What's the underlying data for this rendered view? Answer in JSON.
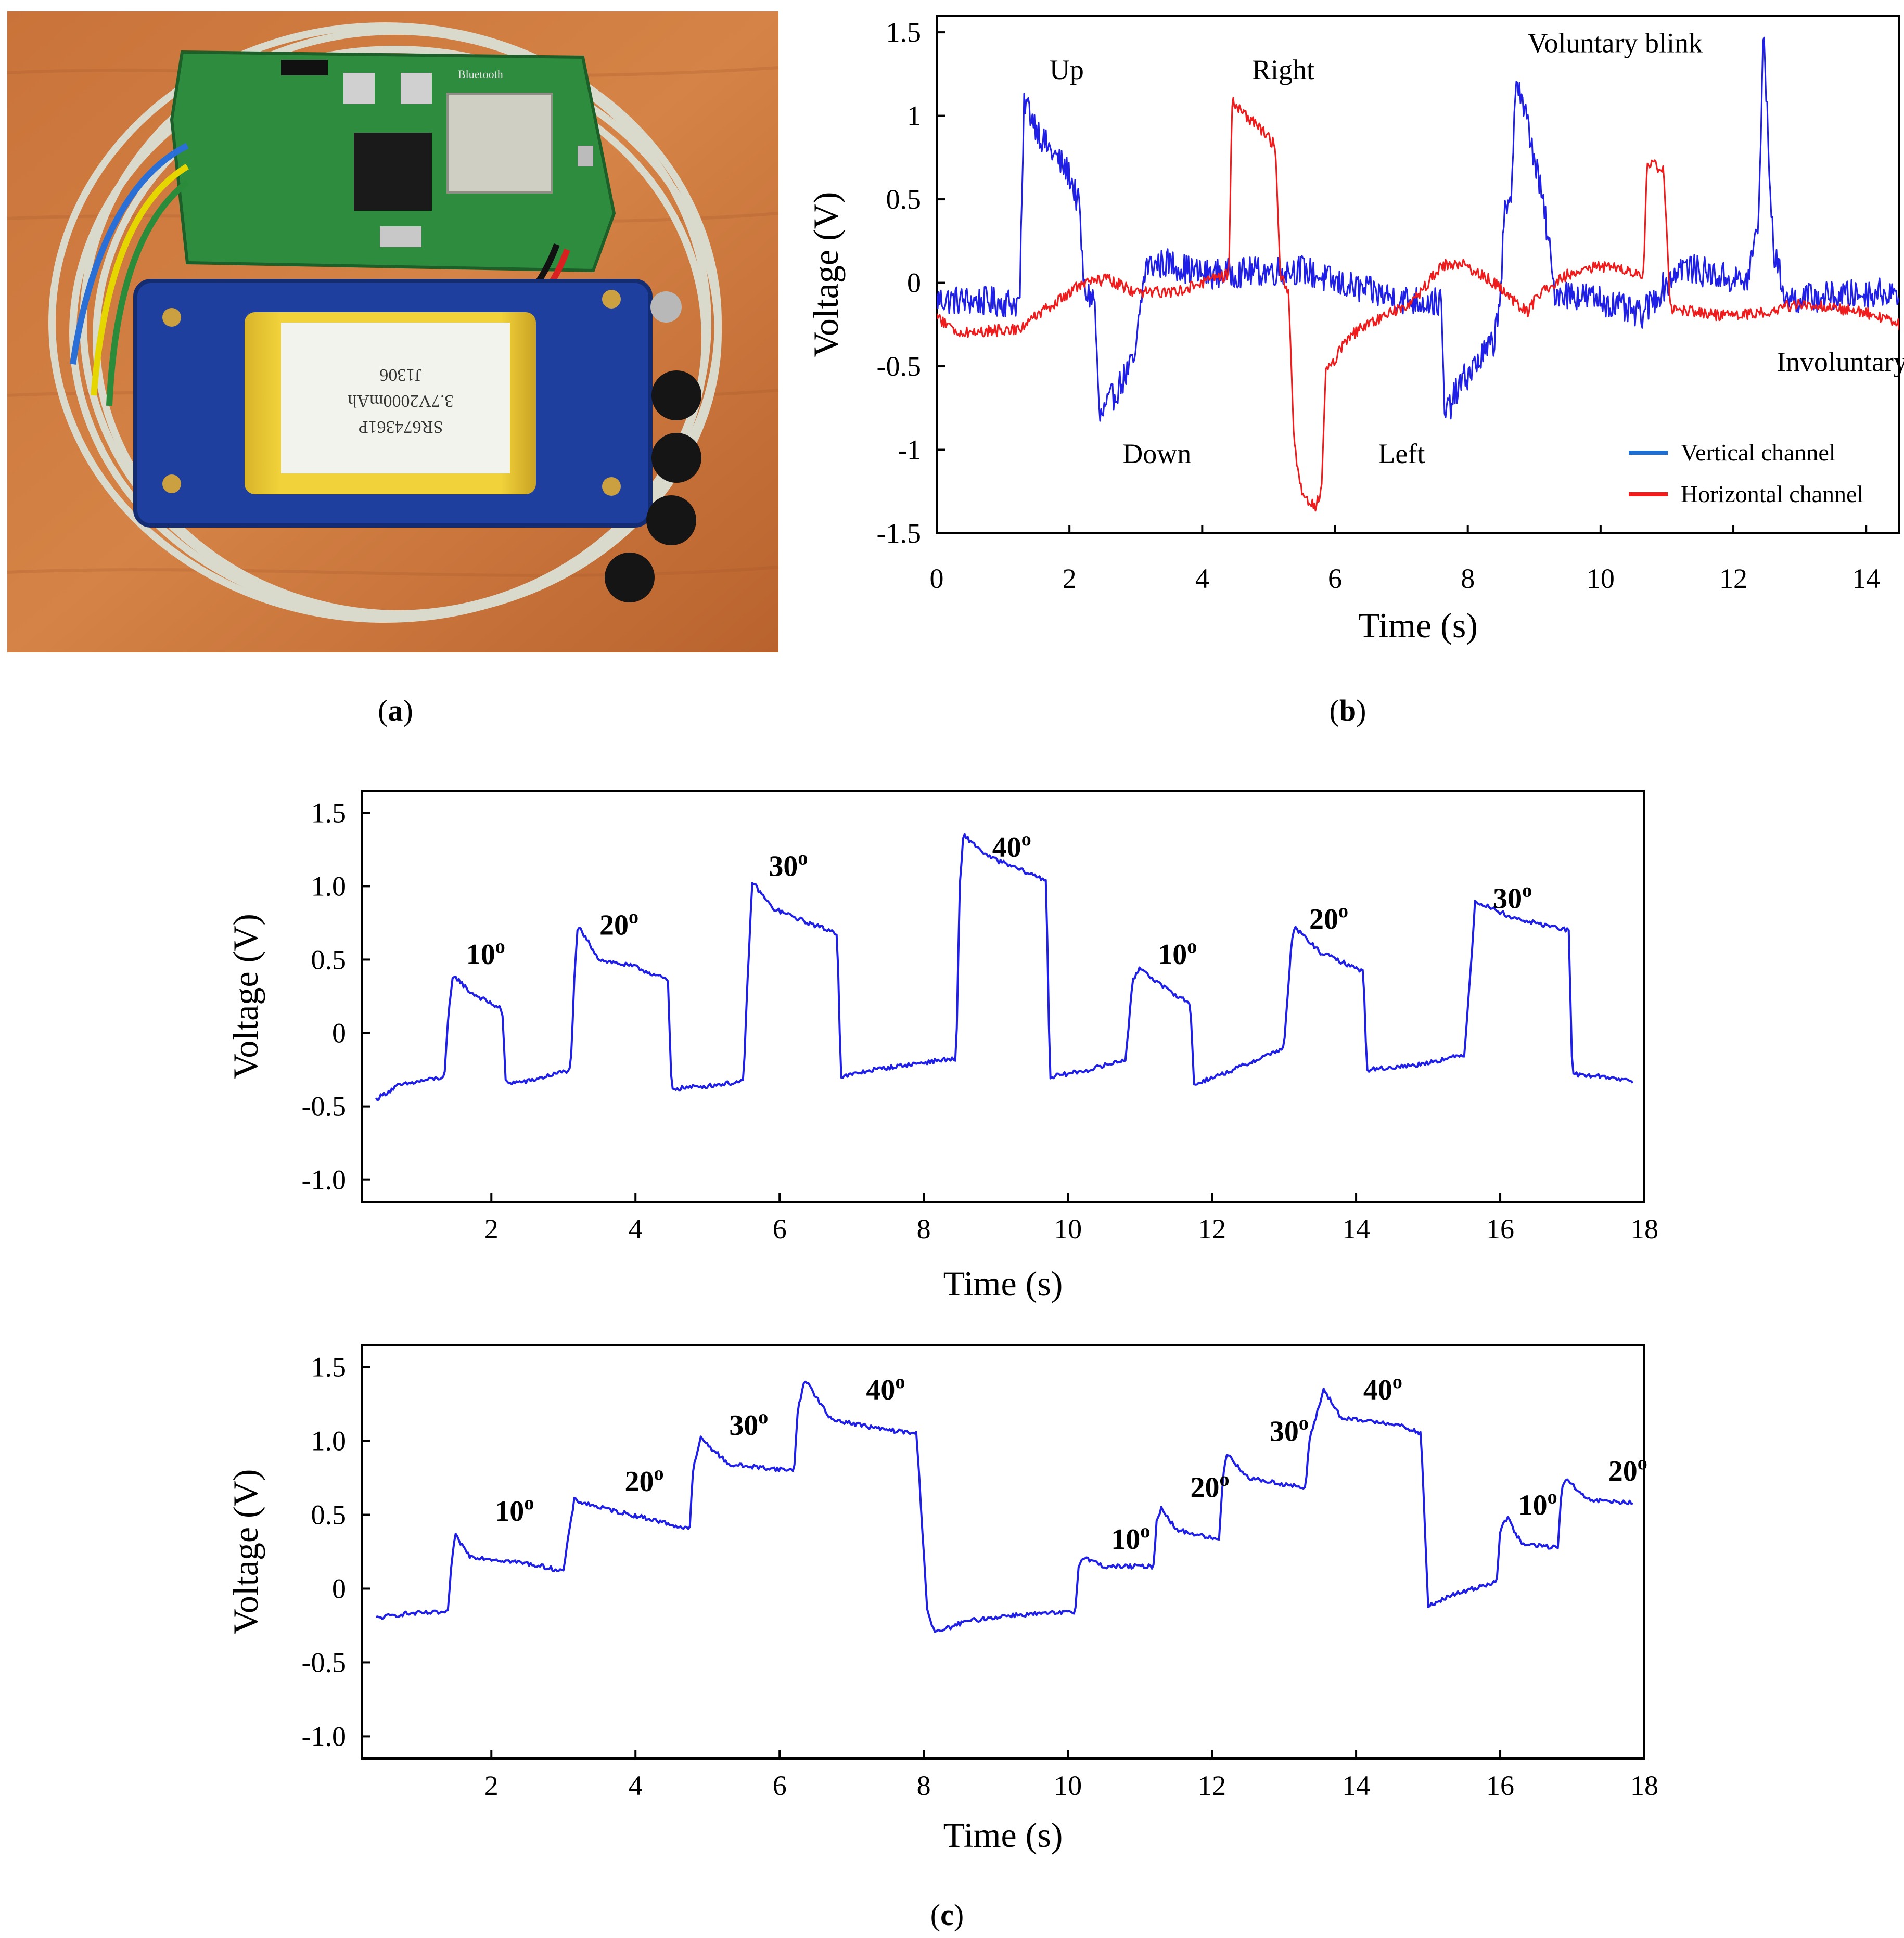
{
  "panel_labels": {
    "a": "a",
    "b": "b",
    "c": "c"
  },
  "photo": {
    "battery_label_lines": [
      "SR674361P",
      "3.7V2000mAh",
      "J1306"
    ],
    "board_text": "Bluetooth"
  },
  "colors": {
    "vertical": "#1f1fe6",
    "horizontal": "#ee1c1c",
    "legend_vertical": "#1f6fd0",
    "legend_horizontal": "#ee1c1c"
  },
  "chart_data": [
    {
      "id": "b",
      "type": "line",
      "xlabel": "Time (s)",
      "ylabel": "Voltage (V)",
      "xlim": [
        0,
        14.5
      ],
      "ylim": [
        -1.5,
        1.6
      ],
      "x_ticks": [
        0,
        2,
        4,
        6,
        8,
        10,
        12,
        14
      ],
      "x_tick_labels": [
        "0",
        "2",
        "4",
        "6",
        "8",
        "10",
        "12",
        "14"
      ],
      "y_ticks": [
        -1.5,
        -1,
        -0.5,
        0,
        0.5,
        1,
        1.5
      ],
      "y_tick_labels": [
        "-1.5",
        "-1",
        "-0.5",
        "0",
        "0.5",
        "1",
        "1.5"
      ],
      "legend_position": "bottom-right",
      "series": [
        {
          "name": "Vertical channel",
          "noise": 0.09,
          "points": [
            [
              0,
              -0.1
            ],
            [
              1.25,
              -0.12
            ],
            [
              1.32,
              1.1
            ],
            [
              1.6,
              0.85
            ],
            [
              2.0,
              0.65
            ],
            [
              2.15,
              0.45
            ],
            [
              2.22,
              -0.05
            ],
            [
              2.38,
              -0.1
            ],
            [
              2.45,
              -0.82
            ],
            [
              2.7,
              -0.65
            ],
            [
              3.0,
              -0.45
            ],
            [
              3.05,
              -0.2
            ],
            [
              3.15,
              0.1
            ],
            [
              3.5,
              0.12
            ],
            [
              4.0,
              0.05
            ],
            [
              5.5,
              0.08
            ],
            [
              6.0,
              0.0
            ],
            [
              7.0,
              -0.1
            ],
            [
              7.6,
              -0.12
            ],
            [
              7.65,
              -0.8
            ],
            [
              7.9,
              -0.6
            ],
            [
              8.4,
              -0.35
            ],
            [
              8.5,
              0.0
            ],
            [
              8.55,
              0.4
            ],
            [
              8.65,
              0.45
            ],
            [
              8.72,
              1.25
            ],
            [
              8.9,
              0.95
            ],
            [
              9.1,
              0.55
            ],
            [
              9.2,
              0.3
            ],
            [
              9.3,
              -0.05
            ],
            [
              10.0,
              -0.1
            ],
            [
              10.6,
              -0.2
            ],
            [
              11.2,
              0.1
            ],
            [
              12.2,
              0.0
            ],
            [
              12.38,
              0.35
            ],
            [
              12.45,
              1.52
            ],
            [
              12.6,
              0.2
            ],
            [
              12.8,
              -0.1
            ],
            [
              14.5,
              -0.05
            ]
          ]
        },
        {
          "name": "Horizontal channel",
          "noise": 0.035,
          "points": [
            [
              0,
              -0.2
            ],
            [
              0.3,
              -0.3
            ],
            [
              1.2,
              -0.28
            ],
            [
              1.8,
              -0.12
            ],
            [
              2.2,
              0.0
            ],
            [
              2.6,
              0.02
            ],
            [
              3.0,
              -0.06
            ],
            [
              3.6,
              -0.05
            ],
            [
              4.4,
              0.05
            ],
            [
              4.45,
              1.08
            ],
            [
              4.8,
              0.95
            ],
            [
              5.1,
              0.82
            ],
            [
              5.18,
              0.05
            ],
            [
              5.3,
              -0.05
            ],
            [
              5.38,
              -0.95
            ],
            [
              5.5,
              -1.25
            ],
            [
              5.7,
              -1.35
            ],
            [
              5.8,
              -1.22
            ],
            [
              5.86,
              -0.55
            ],
            [
              6.2,
              -0.32
            ],
            [
              6.5,
              -0.25
            ],
            [
              7.2,
              -0.1
            ],
            [
              7.6,
              0.1
            ],
            [
              7.9,
              0.12
            ],
            [
              8.4,
              0.0
            ],
            [
              8.9,
              -0.18
            ],
            [
              9.1,
              -0.05
            ],
            [
              9.5,
              0.05
            ],
            [
              10.0,
              0.1
            ],
            [
              10.65,
              0.05
            ],
            [
              10.7,
              0.72
            ],
            [
              10.95,
              0.68
            ],
            [
              11.05,
              -0.15
            ],
            [
              11.8,
              -0.2
            ],
            [
              12.4,
              -0.18
            ],
            [
              13.0,
              -0.12
            ],
            [
              14.0,
              -0.18
            ],
            [
              14.5,
              -0.25
            ]
          ]
        }
      ],
      "annotations": [
        {
          "text": "Up",
          "x": 1.7,
          "y": 1.22
        },
        {
          "text": "Right",
          "x": 4.75,
          "y": 1.22
        },
        {
          "text": "Voluntary blink",
          "x": 8.9,
          "y": 1.38
        },
        {
          "text": "Down",
          "x": 2.8,
          "y": -1.08
        },
        {
          "text": "Left",
          "x": 6.65,
          "y": -1.08
        },
        {
          "text": "Involuntary blink",
          "x": 12.65,
          "y": -0.53
        }
      ]
    },
    {
      "id": "c-top",
      "type": "line",
      "xlabel": "Time (s)",
      "ylabel": "Voltage (V)",
      "xlim": [
        0.2,
        18
      ],
      "ylim": [
        -1.15,
        1.65
      ],
      "x_ticks": [
        2,
        4,
        6,
        8,
        10,
        12,
        14,
        16,
        18
      ],
      "x_tick_labels": [
        "2",
        "4",
        "6",
        "8",
        "10",
        "12",
        "14",
        "16",
        "18"
      ],
      "y_ticks": [
        -1.0,
        -0.5,
        0,
        0.5,
        1.0,
        1.5
      ],
      "y_tick_labels": [
        "-1.0",
        "-0.5",
        "0",
        "0.5",
        "1.0",
        "1.5"
      ],
      "series": [
        {
          "name": "",
          "noise": 0.015,
          "points": [
            [
              0.4,
              -0.45
            ],
            [
              0.7,
              -0.36
            ],
            [
              1.1,
              -0.32
            ],
            [
              1.35,
              -0.3
            ],
            [
              1.4,
              0.1
            ],
            [
              1.47,
              0.4
            ],
            [
              1.7,
              0.28
            ],
            [
              2.15,
              0.16
            ],
            [
              2.2,
              -0.34
            ],
            [
              2.5,
              -0.33
            ],
            [
              3.1,
              -0.25
            ],
            [
              3.15,
              0.35
            ],
            [
              3.2,
              0.73
            ],
            [
              3.5,
              0.5
            ],
            [
              4.0,
              0.45
            ],
            [
              4.45,
              0.36
            ],
            [
              4.5,
              -0.38
            ],
            [
              5.0,
              -0.36
            ],
            [
              5.5,
              -0.33
            ],
            [
              5.55,
              0.3
            ],
            [
              5.62,
              1.03
            ],
            [
              5.9,
              0.85
            ],
            [
              6.4,
              0.75
            ],
            [
              6.8,
              0.68
            ],
            [
              6.85,
              -0.3
            ],
            [
              7.3,
              -0.25
            ],
            [
              8.3,
              -0.18
            ],
            [
              8.45,
              -0.18
            ],
            [
              8.5,
              1.0
            ],
            [
              8.55,
              1.35
            ],
            [
              8.9,
              1.2
            ],
            [
              9.7,
              1.04
            ],
            [
              9.75,
              -0.3
            ],
            [
              10.3,
              -0.25
            ],
            [
              10.8,
              -0.18
            ],
            [
              10.9,
              0.35
            ],
            [
              11.0,
              0.45
            ],
            [
              11.3,
              0.32
            ],
            [
              11.7,
              0.2
            ],
            [
              11.75,
              -0.35
            ],
            [
              12.3,
              -0.25
            ],
            [
              13.0,
              -0.1
            ],
            [
              13.1,
              0.6
            ],
            [
              13.15,
              0.72
            ],
            [
              13.5,
              0.55
            ],
            [
              14.1,
              0.42
            ],
            [
              14.15,
              -0.25
            ],
            [
              14.8,
              -0.22
            ],
            [
              15.5,
              -0.15
            ],
            [
              15.6,
              0.5
            ],
            [
              15.65,
              0.9
            ],
            [
              16.2,
              0.78
            ],
            [
              16.95,
              0.7
            ],
            [
              17.0,
              -0.28
            ],
            [
              17.5,
              -0.3
            ],
            [
              17.85,
              -0.33
            ]
          ]
        }
      ],
      "annotations": [
        {
          "value": "10",
          "sup": "o",
          "x": 1.65,
          "y": 0.47
        },
        {
          "value": "20",
          "sup": "o",
          "x": 3.5,
          "y": 0.67
        },
        {
          "value": "30",
          "sup": "o",
          "x": 5.85,
          "y": 1.07
        },
        {
          "value": "40",
          "sup": "o",
          "x": 8.95,
          "y": 1.2
        },
        {
          "value": "10",
          "sup": "o",
          "x": 11.25,
          "y": 0.47
        },
        {
          "value": "20",
          "sup": "o",
          "x": 13.35,
          "y": 0.71
        },
        {
          "value": "30",
          "sup": "o",
          "x": 15.9,
          "y": 0.85
        }
      ]
    },
    {
      "id": "c-bottom",
      "type": "line",
      "xlabel": "Time (s)",
      "ylabel": "Voltage (V)",
      "xlim": [
        0.2,
        18
      ],
      "ylim": [
        -1.15,
        1.65
      ],
      "x_ticks": [
        2,
        4,
        6,
        8,
        10,
        12,
        14,
        16,
        18
      ],
      "x_tick_labels": [
        "2",
        "4",
        "6",
        "8",
        "10",
        "12",
        "14",
        "16",
        "18"
      ],
      "y_ticks": [
        -1.0,
        -0.5,
        0,
        0.5,
        1.0,
        1.5
      ],
      "y_tick_labels": [
        "-1.0",
        "-0.5",
        "0",
        "0.5",
        "1.0",
        "1.5"
      ],
      "series": [
        {
          "name": "",
          "noise": 0.015,
          "points": [
            [
              0.4,
              -0.2
            ],
            [
              0.8,
              -0.17
            ],
            [
              1.4,
              -0.16
            ],
            [
              1.45,
              0.2
            ],
            [
              1.5,
              0.36
            ],
            [
              1.7,
              0.22
            ],
            [
              2.5,
              0.17
            ],
            [
              3.0,
              0.12
            ],
            [
              3.1,
              0.45
            ],
            [
              3.15,
              0.6
            ],
            [
              3.5,
              0.55
            ],
            [
              4.3,
              0.46
            ],
            [
              4.75,
              0.4
            ],
            [
              4.8,
              0.8
            ],
            [
              4.9,
              1.02
            ],
            [
              5.3,
              0.84
            ],
            [
              6.2,
              0.8
            ],
            [
              6.25,
              1.2
            ],
            [
              6.35,
              1.42
            ],
            [
              6.7,
              1.15
            ],
            [
              7.4,
              1.08
            ],
            [
              7.9,
              1.05
            ],
            [
              8.05,
              -0.15
            ],
            [
              8.15,
              -0.3
            ],
            [
              8.6,
              -0.22
            ],
            [
              9.2,
              -0.18
            ],
            [
              10.1,
              -0.16
            ],
            [
              10.15,
              0.15
            ],
            [
              10.2,
              0.22
            ],
            [
              10.5,
              0.15
            ],
            [
              11.2,
              0.15
            ],
            [
              11.22,
              0.45
            ],
            [
              11.3,
              0.55
            ],
            [
              11.5,
              0.4
            ],
            [
              12.1,
              0.33
            ],
            [
              12.15,
              0.75
            ],
            [
              12.2,
              0.92
            ],
            [
              12.5,
              0.75
            ],
            [
              13.3,
              0.68
            ],
            [
              13.35,
              1.0
            ],
            [
              13.55,
              1.35
            ],
            [
              13.8,
              1.15
            ],
            [
              14.5,
              1.12
            ],
            [
              14.9,
              1.05
            ],
            [
              15.0,
              -0.12
            ],
            [
              15.3,
              -0.05
            ],
            [
              15.95,
              0.05
            ],
            [
              16.0,
              0.4
            ],
            [
              16.1,
              0.48
            ],
            [
              16.3,
              0.3
            ],
            [
              16.8,
              0.28
            ],
            [
              16.85,
              0.65
            ],
            [
              16.9,
              0.75
            ],
            [
              17.2,
              0.6
            ],
            [
              17.85,
              0.58
            ]
          ]
        }
      ],
      "annotations": [
        {
          "value": "10",
          "sup": "o",
          "x": 2.05,
          "y": 0.46
        },
        {
          "value": "20",
          "sup": "o",
          "x": 3.85,
          "y": 0.66
        },
        {
          "value": "30",
          "sup": "o",
          "x": 5.3,
          "y": 1.04
        },
        {
          "value": "40",
          "sup": "o",
          "x": 7.2,
          "y": 1.28
        },
        {
          "value": "10",
          "sup": "o",
          "x": 10.6,
          "y": 0.27
        },
        {
          "value": "20",
          "sup": "o",
          "x": 11.7,
          "y": 0.62
        },
        {
          "value": "30",
          "sup": "o",
          "x": 12.8,
          "y": 1.0
        },
        {
          "value": "40",
          "sup": "o",
          "x": 14.1,
          "y": 1.28
        },
        {
          "value": "10",
          "sup": "o",
          "x": 16.25,
          "y": 0.5
        },
        {
          "value": "20",
          "sup": "o",
          "x": 17.5,
          "y": 0.73
        }
      ]
    }
  ]
}
